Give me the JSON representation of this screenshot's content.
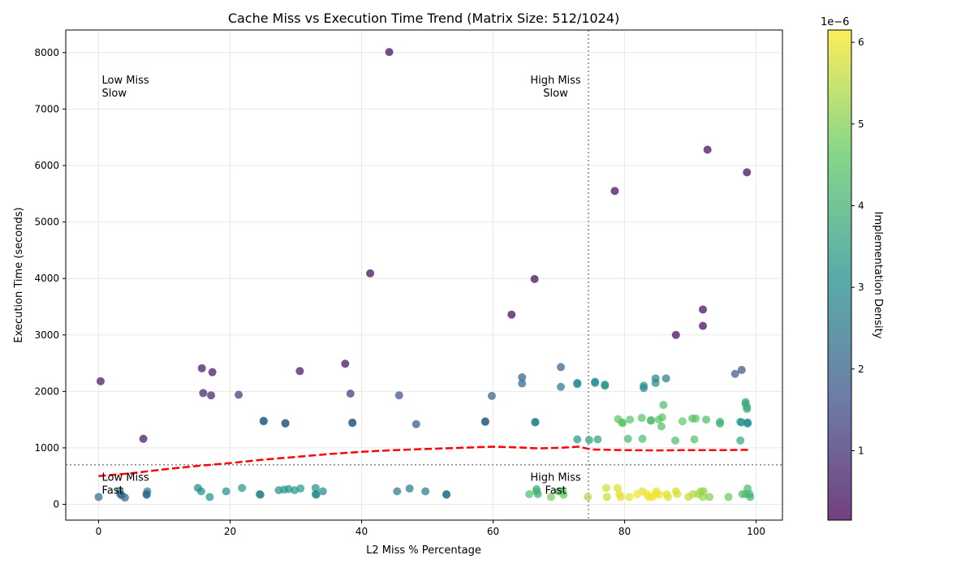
{
  "chart_data": {
    "type": "scatter",
    "title": "Cache Miss vs Execution Time Trend (Matrix Size: 512/1024)",
    "xlabel": "L2 Miss % Percentage",
    "ylabel": "Execution Time (seconds)",
    "xlim": [
      -5,
      104
    ],
    "ylim": [
      -280,
      8400
    ],
    "x_ticks": [
      0,
      20,
      40,
      60,
      80,
      100
    ],
    "y_ticks": [
      0,
      1000,
      2000,
      3000,
      4000,
      5000,
      6000,
      7000,
      8000
    ],
    "grid": true,
    "colorbar": {
      "label": "Implementation Density",
      "exponent_label": "1e−6",
      "range": [
        0.15,
        6.15
      ],
      "ticks": [
        1,
        2,
        3,
        4,
        5,
        6
      ],
      "colormap": "viridis"
    },
    "threshold_lines": {
      "x": 74.5,
      "y": 700
    },
    "quadrant_labels": [
      {
        "lines": [
          "Low Miss",
          "Slow"
        ],
        "x": 0.5,
        "y": 7450,
        "align": "start",
        "color": "#00008b"
      },
      {
        "lines": [
          "High Miss",
          "Slow"
        ],
        "x": 69.5,
        "y": 7450,
        "align": "middle",
        "color": "#8b0000"
      },
      {
        "lines": [
          "Low Miss",
          "Fast"
        ],
        "x": 0.5,
        "y": 420,
        "align": "start",
        "color": "#006400"
      },
      {
        "lines": [
          "High Miss",
          "Fast"
        ],
        "x": 69.5,
        "y": 420,
        "align": "middle",
        "color": "#ff8c00"
      }
    ],
    "trend_line": {
      "color": "#ff0000",
      "points": [
        [
          0,
          500
        ],
        [
          5,
          550
        ],
        [
          10,
          620
        ],
        [
          15,
          680
        ],
        [
          20,
          730
        ],
        [
          25,
          790
        ],
        [
          30,
          840
        ],
        [
          35,
          890
        ],
        [
          40,
          930
        ],
        [
          45,
          960
        ],
        [
          50,
          980
        ],
        [
          55,
          1000
        ],
        [
          60,
          1020
        ],
        [
          63,
          1010
        ],
        [
          67,
          990
        ],
        [
          70,
          1000
        ],
        [
          73,
          1020
        ],
        [
          75,
          970
        ],
        [
          80,
          960
        ],
        [
          85,
          955
        ],
        [
          90,
          960
        ],
        [
          95,
          960
        ],
        [
          99,
          965
        ]
      ]
    },
    "series": [
      {
        "points": [
          [
            44.2,
            8010,
            0.3
          ],
          [
            92.6,
            6280,
            0.3
          ],
          [
            98.6,
            5880,
            0.3
          ],
          [
            78.5,
            5550,
            0.3
          ],
          [
            41.3,
            4090,
            0.3
          ],
          [
            66.3,
            3990,
            0.3
          ],
          [
            62.8,
            3360,
            0.3
          ],
          [
            91.9,
            3450,
            0.3
          ],
          [
            91.9,
            3160,
            0.3
          ],
          [
            87.8,
            3000,
            0.3
          ],
          [
            37.5,
            2490,
            0.4
          ],
          [
            15.7,
            2410,
            0.5
          ],
          [
            17.3,
            2340,
            0.5
          ],
          [
            30.6,
            2360,
            0.5
          ],
          [
            0.3,
            2180,
            0.5
          ],
          [
            6.8,
            1160,
            0.5
          ],
          [
            15.9,
            1970,
            0.8
          ],
          [
            17.1,
            1930,
            0.8
          ],
          [
            21.3,
            1940,
            1.2
          ],
          [
            38.3,
            1960,
            1.2
          ],
          [
            45.7,
            1930,
            1.6
          ],
          [
            48.3,
            1420,
            1.8
          ],
          [
            25.1,
            1470,
            2.1
          ],
          [
            25.1,
            1480,
            2.1
          ],
          [
            28.4,
            1430,
            2.1
          ],
          [
            28.4,
            1440,
            2.1
          ],
          [
            38.6,
            1440,
            2.1
          ],
          [
            38.6,
            1450,
            2.1
          ],
          [
            58.8,
            1470,
            2.1
          ],
          [
            58.8,
            1460,
            2.1
          ],
          [
            59.8,
            1920,
            2.0
          ],
          [
            64.4,
            2250,
            2.0
          ],
          [
            64.4,
            2140,
            2.2
          ],
          [
            70.3,
            2430,
            2.0
          ],
          [
            70.3,
            2080,
            2.6
          ],
          [
            66.4,
            1460,
            2.8
          ],
          [
            66.4,
            1450,
            2.8
          ],
          [
            72.8,
            2150,
            3.0
          ],
          [
            72.8,
            2130,
            3.0
          ],
          [
            75.5,
            2170,
            3.1
          ],
          [
            75.5,
            2150,
            3.1
          ],
          [
            77.0,
            2120,
            3.2
          ],
          [
            77.0,
            2100,
            3.2
          ],
          [
            82.9,
            2100,
            3.1
          ],
          [
            82.9,
            2060,
            3.1
          ],
          [
            84.7,
            2230,
            2.9
          ],
          [
            84.7,
            2150,
            3.0
          ],
          [
            86.3,
            2230,
            2.6
          ],
          [
            96.8,
            2310,
            1.9
          ],
          [
            97.8,
            2380,
            1.7
          ],
          [
            72.8,
            1150,
            3.4
          ],
          [
            74.6,
            1140,
            3.5
          ],
          [
            75.9,
            1150,
            3.6
          ],
          [
            80.5,
            1160,
            4.2
          ],
          [
            82.7,
            1160,
            4.3
          ],
          [
            87.7,
            1130,
            4.3
          ],
          [
            90.6,
            1150,
            4.4
          ],
          [
            97.6,
            1130,
            3.7
          ],
          [
            97.6,
            1460,
            3.3
          ],
          [
            97.8,
            1450,
            3.3
          ],
          [
            98.7,
            1450,
            3.0
          ],
          [
            98.7,
            1430,
            3.0
          ],
          [
            98.4,
            1810,
            3.6
          ],
          [
            98.4,
            1780,
            3.7
          ],
          [
            98.6,
            1720,
            3.8
          ],
          [
            98.6,
            1690,
            3.9
          ],
          [
            85.9,
            1760,
            4.3
          ],
          [
            79.0,
            1510,
            4.6
          ],
          [
            79.6,
            1450,
            4.5
          ],
          [
            80.8,
            1500,
            4.5
          ],
          [
            82.6,
            1530,
            4.5
          ],
          [
            84.0,
            1490,
            4.3
          ],
          [
            84.0,
            1480,
            4.3
          ],
          [
            85.2,
            1500,
            4.6
          ],
          [
            85.7,
            1540,
            4.5
          ],
          [
            85.6,
            1380,
            4.4
          ],
          [
            88.8,
            1470,
            4.7
          ],
          [
            90.3,
            1520,
            4.5
          ],
          [
            90.8,
            1520,
            4.5
          ],
          [
            92.4,
            1500,
            4.3
          ],
          [
            94.5,
            1460,
            4.0
          ],
          [
            94.5,
            1430,
            4.0
          ],
          [
            79.7,
            1440,
            4.5
          ],
          [
            0.0,
            130,
            2.3
          ],
          [
            3.2,
            240,
            2.6
          ],
          [
            3.3,
            180,
            2.3
          ],
          [
            3.5,
            160,
            2.1
          ],
          [
            4.0,
            120,
            2.2
          ],
          [
            7.4,
            230,
            2.9
          ],
          [
            7.3,
            180,
            2.1
          ],
          [
            7.3,
            170,
            2.2
          ],
          [
            15.1,
            290,
            3.0
          ],
          [
            15.6,
            230,
            3.1
          ],
          [
            16.9,
            130,
            3.2
          ],
          [
            19.4,
            230,
            3.2
          ],
          [
            21.8,
            290,
            3.3
          ],
          [
            24.5,
            180,
            2.8
          ],
          [
            24.6,
            170,
            2.8
          ],
          [
            27.4,
            250,
            3.2
          ],
          [
            28.2,
            260,
            3.3
          ],
          [
            28.9,
            270,
            3.2
          ],
          [
            29.8,
            250,
            3.3
          ],
          [
            30.7,
            280,
            3.3
          ],
          [
            33.0,
            290,
            3.2
          ],
          [
            33.0,
            180,
            3.0
          ],
          [
            33.1,
            170,
            2.9
          ],
          [
            34.1,
            230,
            3.1
          ],
          [
            45.4,
            230,
            2.6
          ],
          [
            47.3,
            280,
            2.6
          ],
          [
            49.7,
            230,
            2.6
          ],
          [
            52.9,
            180,
            2.4
          ],
          [
            52.9,
            170,
            2.4
          ],
          [
            65.5,
            180,
            4.3
          ],
          [
            66.6,
            270,
            4.0
          ],
          [
            66.6,
            230,
            4.0
          ],
          [
            66.8,
            180,
            4.0
          ],
          [
            68.8,
            130,
            4.9
          ],
          [
            70.0,
            230,
            4.2
          ],
          [
            70.6,
            230,
            4.5
          ],
          [
            70.7,
            170,
            4.7
          ],
          [
            74.4,
            130,
            5.4
          ],
          [
            77.2,
            290,
            5.7
          ],
          [
            77.3,
            130,
            5.7
          ],
          [
            78.9,
            290,
            5.8
          ],
          [
            79.2,
            180,
            5.9
          ],
          [
            79.4,
            130,
            5.9
          ],
          [
            80.7,
            130,
            5.9
          ],
          [
            81.9,
            180,
            6.0
          ],
          [
            82.7,
            230,
            5.9
          ],
          [
            83.4,
            180,
            6.0
          ],
          [
            83.7,
            130,
            6.0
          ],
          [
            84.2,
            130,
            6.0
          ],
          [
            84.7,
            180,
            6.0
          ],
          [
            84.8,
            230,
            6.0
          ],
          [
            85.3,
            170,
            6.0
          ],
          [
            86.4,
            180,
            5.9
          ],
          [
            86.6,
            130,
            5.9
          ],
          [
            87.8,
            230,
            5.8
          ],
          [
            88.0,
            180,
            5.8
          ],
          [
            89.7,
            130,
            5.6
          ],
          [
            90.4,
            180,
            5.5
          ],
          [
            91.2,
            180,
            5.3
          ],
          [
            91.6,
            230,
            5.3
          ],
          [
            91.9,
            130,
            5.2
          ],
          [
            92.0,
            230,
            5.1
          ],
          [
            92.9,
            130,
            5.0
          ],
          [
            95.8,
            130,
            4.7
          ],
          [
            97.9,
            180,
            4.3
          ],
          [
            98.4,
            180,
            4.2
          ],
          [
            98.7,
            280,
            4.2
          ],
          [
            99.0,
            180,
            4.1
          ],
          [
            99.1,
            130,
            4.1
          ]
        ]
      }
    ]
  }
}
